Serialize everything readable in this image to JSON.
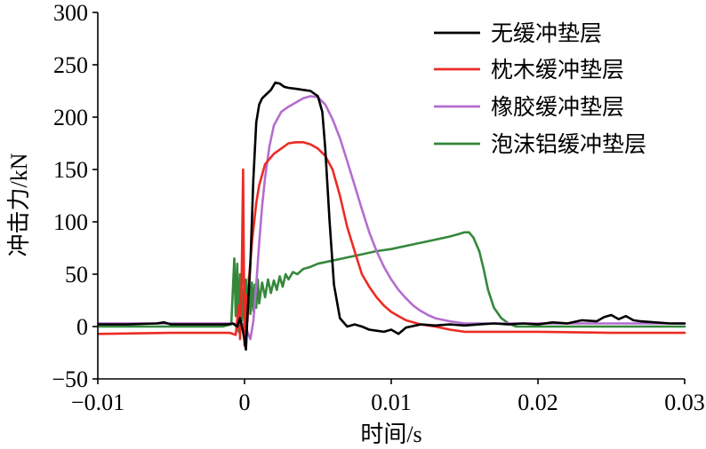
{
  "chart_data": {
    "type": "line",
    "xlabel": "时间/s",
    "ylabel": "冲击力/kN",
    "xlim": [
      -0.01,
      0.03
    ],
    "ylim": [
      -50,
      300
    ],
    "xticks": [
      -0.01,
      0,
      0.01,
      0.02,
      0.03
    ],
    "xtick_labels": [
      "−0.01",
      "0",
      "0.01",
      "0.02",
      "0.03"
    ],
    "yticks": [
      -50,
      0,
      50,
      100,
      150,
      200,
      250,
      300
    ],
    "ytick_labels": [
      "−50",
      "0",
      "50",
      "100",
      "150",
      "200",
      "250",
      "300"
    ],
    "grid": false,
    "legend_position": "top-right",
    "series": [
      {
        "name": "无缓冲垫层",
        "color": "#000000",
        "x": [
          -0.01,
          -0.008,
          -0.006,
          -0.0055,
          -0.005,
          -0.003,
          -0.0012,
          -0.0008,
          -0.0005,
          -0.0003,
          -0.0001,
          0.0001,
          0.0002,
          0.0004,
          0.0006,
          0.0008,
          0.001,
          0.0012,
          0.0015,
          0.0018,
          0.0021,
          0.0024,
          0.0027,
          0.003,
          0.0035,
          0.004,
          0.0045,
          0.005,
          0.0053,
          0.0055,
          0.0058,
          0.0061,
          0.0065,
          0.007,
          0.0075,
          0.008,
          0.0085,
          0.009,
          0.0095,
          0.01,
          0.0105,
          0.011,
          0.012,
          0.013,
          0.014,
          0.015,
          0.016,
          0.017,
          0.018,
          0.019,
          0.02,
          0.021,
          0.022,
          0.023,
          0.024,
          0.0245,
          0.025,
          0.0255,
          0.026,
          0.0265,
          0.027,
          0.028,
          0.029,
          0.03
        ],
        "y": [
          2,
          2,
          3,
          4,
          2,
          2,
          2,
          3,
          0,
          8,
          -5,
          -22,
          10,
          60,
          140,
          195,
          212,
          218,
          222,
          226,
          233,
          232,
          229,
          228,
          227,
          226,
          225,
          220,
          205,
          170,
          100,
          40,
          8,
          0,
          2,
          0,
          -3,
          -4,
          -5,
          -3,
          -7,
          -1,
          2,
          1,
          2,
          1,
          2,
          3,
          2,
          3,
          2,
          4,
          3,
          6,
          5,
          9,
          11,
          7,
          10,
          6,
          5,
          4,
          3,
          3
        ]
      },
      {
        "name": "枕木缓冲垫层",
        "color": "#ec2b24",
        "x": [
          -0.01,
          -0.005,
          -0.002,
          -0.001,
          -0.0006,
          -0.0004,
          -0.0003,
          -0.0002,
          -0.0001,
          0,
          0.0001,
          0.0002,
          0.0003,
          0.0005,
          0.0008,
          0.001,
          0.0014,
          0.002,
          0.0025,
          0.003,
          0.0035,
          0.004,
          0.0045,
          0.005,
          0.0055,
          0.006,
          0.0065,
          0.007,
          0.0075,
          0.008,
          0.0085,
          0.009,
          0.0095,
          0.01,
          0.0105,
          0.011,
          0.012,
          0.013,
          0.014,
          0.015,
          0.02,
          0.025,
          0.03
        ],
        "y": [
          -7,
          -6,
          -6,
          -6,
          -8,
          20,
          -12,
          40,
          150,
          -18,
          30,
          5,
          45,
          80,
          118,
          135,
          155,
          165,
          170,
          175,
          176,
          176,
          174,
          170,
          163,
          150,
          125,
          95,
          72,
          50,
          38,
          28,
          20,
          14,
          10,
          6,
          2,
          0,
          -3,
          -5,
          -5,
          -6,
          -6
        ]
      },
      {
        "name": "橡胶缓冲垫层",
        "color": "#b46dcf",
        "x": [
          -0.01,
          -0.005,
          -0.001,
          0,
          0.0002,
          0.0004,
          0.0006,
          0.0008,
          0.001,
          0.0012,
          0.0014,
          0.0017,
          0.002,
          0.0025,
          0.003,
          0.0035,
          0.004,
          0.0045,
          0.005,
          0.0055,
          0.006,
          0.0065,
          0.007,
          0.0075,
          0.008,
          0.0085,
          0.009,
          0.0095,
          0.01,
          0.0105,
          0.011,
          0.0115,
          0.012,
          0.0125,
          0.013,
          0.014,
          0.015,
          0.02,
          0.025,
          0.03
        ],
        "y": [
          3,
          3,
          3,
          2,
          -5,
          -12,
          5,
          40,
          80,
          115,
          142,
          172,
          192,
          205,
          210,
          214,
          218,
          220,
          219,
          212,
          198,
          180,
          158,
          135,
          112,
          90,
          72,
          57,
          45,
          35,
          27,
          20,
          15,
          11,
          8,
          5,
          3,
          3,
          3,
          3
        ]
      },
      {
        "name": "泡沫铝缓冲垫层",
        "color": "#35883b",
        "x": [
          -0.01,
          -0.005,
          -0.0015,
          -0.0009,
          -0.0007,
          -0.0006,
          -0.0005,
          -0.0004,
          -0.0003,
          -0.0002,
          -0.0001,
          0,
          0.0001,
          0.0002,
          0.0003,
          0.0004,
          0.0005,
          0.0006,
          0.0007,
          0.0008,
          0.0009,
          0.001,
          0.0012,
          0.0014,
          0.0016,
          0.0018,
          0.002,
          0.0022,
          0.0024,
          0.0026,
          0.0028,
          0.003,
          0.0033,
          0.0036,
          0.004,
          0.0045,
          0.005,
          0.006,
          0.007,
          0.008,
          0.009,
          0.01,
          0.011,
          0.012,
          0.013,
          0.014,
          0.0145,
          0.015,
          0.0153,
          0.0156,
          0.016,
          0.0163,
          0.0166,
          0.017,
          0.0175,
          0.018,
          0.0185,
          0.02,
          0.025,
          0.03
        ],
        "y": [
          0,
          0,
          0,
          2,
          65,
          10,
          60,
          -5,
          50,
          5,
          35,
          0,
          45,
          8,
          48,
          12,
          42,
          15,
          40,
          18,
          45,
          22,
          42,
          28,
          45,
          32,
          44,
          35,
          48,
          38,
          50,
          45,
          52,
          50,
          55,
          57,
          60,
          63,
          66,
          69,
          72,
          74,
          77,
          80,
          83,
          86,
          88,
          90,
          90,
          85,
          72,
          55,
          35,
          18,
          8,
          3,
          0,
          0,
          0,
          0
        ]
      }
    ]
  }
}
